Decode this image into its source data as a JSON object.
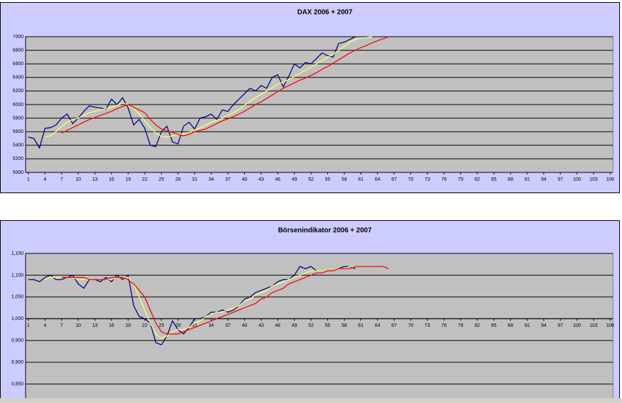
{
  "chart_data": [
    {
      "type": "line",
      "title": "DAX 2006 + 2007",
      "x": [
        1,
        2,
        3,
        4,
        5,
        6,
        7,
        8,
        9,
        10,
        11,
        12,
        13,
        14,
        15,
        16,
        17,
        18,
        19,
        20,
        21,
        22,
        23,
        24,
        25,
        26,
        27,
        28,
        29,
        30,
        31,
        32,
        33,
        34,
        35,
        36,
        37,
        38,
        39,
        40,
        41,
        42,
        43,
        44,
        45,
        46,
        47,
        48,
        49,
        50,
        51,
        52,
        53,
        54,
        55,
        56,
        57,
        58,
        59,
        60,
        61,
        62,
        63,
        64,
        65,
        66
      ],
      "series": [
        {
          "color": "#000080",
          "values": [
            5520,
            5500,
            5360,
            5650,
            5660,
            5700,
            5800,
            5860,
            5720,
            5800,
            5900,
            5980,
            5960,
            5950,
            5930,
            6080,
            6000,
            6100,
            5950,
            5700,
            5780,
            5650,
            5400,
            5380,
            5600,
            5680,
            5450,
            5420,
            5680,
            5740,
            5640,
            5800,
            5820,
            5860,
            5780,
            5920,
            5900,
            6000,
            6080,
            6160,
            6240,
            6200,
            6280,
            6240,
            6400,
            6440,
            6260,
            6420,
            6600,
            6540,
            6620,
            6600,
            6680,
            6760,
            6720,
            6700,
            6900,
            6920,
            6960,
            7000,
            null,
            null,
            null,
            null,
            null,
            null
          ]
        },
        {
          "color": "#ffff66",
          "values": [
            null,
            null,
            null,
            5520,
            5540,
            5600,
            5680,
            5740,
            5780,
            5800,
            5840,
            5880,
            5900,
            5920,
            5940,
            5960,
            5990,
            6020,
            6000,
            5940,
            5860,
            5760,
            5660,
            5580,
            5530,
            5520,
            5540,
            5560,
            5570,
            5590,
            5620,
            5660,
            5700,
            5740,
            5770,
            5800,
            5840,
            5880,
            5930,
            5990,
            6050,
            6100,
            6150,
            6200,
            6250,
            6300,
            6330,
            6370,
            6410,
            6460,
            6510,
            6550,
            6600,
            6650,
            6700,
            6740,
            6800,
            6860,
            6920,
            6960,
            6980,
            6990,
            7000,
            null,
            null,
            null
          ]
        },
        {
          "color": "#ff0000",
          "values": [
            null,
            null,
            null,
            null,
            null,
            null,
            5580,
            5620,
            5660,
            5700,
            5740,
            5780,
            5810,
            5840,
            5870,
            5900,
            5940,
            5970,
            6000,
            5960,
            5920,
            5880,
            5780,
            5700,
            5640,
            5610,
            5590,
            5560,
            5540,
            5560,
            5600,
            5620,
            5640,
            5680,
            5720,
            5760,
            5790,
            5820,
            5860,
            5900,
            5950,
            6000,
            6040,
            6090,
            6140,
            6190,
            6240,
            6280,
            6320,
            6360,
            6390,
            6430,
            6470,
            6520,
            6560,
            6610,
            6660,
            6710,
            6760,
            6800,
            6840,
            6870,
            6910,
            6940,
            6970,
            7000
          ]
        }
      ],
      "xlim": [
        0.5,
        106.5
      ],
      "xticks": [
        1,
        4,
        7,
        10,
        13,
        16,
        19,
        22,
        25,
        28,
        31,
        34,
        37,
        40,
        43,
        46,
        49,
        52,
        55,
        58,
        61,
        64,
        67,
        70,
        73,
        76,
        79,
        82,
        85,
        88,
        91,
        94,
        97,
        100,
        103,
        106
      ],
      "ylim": [
        5000,
        7000
      ],
      "yticks": [
        5000,
        5200,
        5400,
        5600,
        5800,
        6000,
        6200,
        6400,
        6600,
        6800,
        7000
      ],
      "xaxis_crosses": 5000,
      "grid": true
    },
    {
      "type": "line",
      "title": "Börsenindikator 2006 + 2007",
      "x": [
        1,
        2,
        3,
        4,
        5,
        6,
        7,
        8,
        9,
        10,
        11,
        12,
        13,
        14,
        15,
        16,
        17,
        18,
        19,
        20,
        21,
        22,
        23,
        24,
        25,
        26,
        27,
        28,
        29,
        30,
        31,
        32,
        33,
        34,
        35,
        36,
        37,
        38,
        39,
        40,
        41,
        42,
        43,
        44,
        45,
        46,
        47,
        48,
        49,
        50,
        51,
        52,
        53,
        54,
        55,
        56,
        57,
        58,
        59,
        60,
        61,
        62,
        63,
        64,
        65,
        66
      ],
      "series": [
        {
          "color": "#000080",
          "values": [
            1.09,
            1.09,
            1.085,
            1.095,
            1.1,
            1.09,
            1.09,
            1.095,
            1.1,
            1.08,
            1.07,
            1.09,
            1.09,
            1.085,
            1.095,
            1.085,
            1.1,
            1.09,
            1.1,
            1.03,
            1.005,
            1.0,
            0.99,
            0.945,
            0.94,
            0.96,
            0.995,
            0.975,
            0.965,
            0.98,
            1.0,
            1.0,
            1.005,
            1.015,
            1.015,
            1.02,
            1.015,
            1.02,
            1.03,
            1.045,
            1.05,
            1.06,
            1.065,
            1.07,
            1.075,
            1.085,
            1.09,
            1.09,
            1.1,
            1.12,
            1.115,
            1.12,
            1.11,
            1.11,
            1.115,
            1.115,
            1.115,
            1.12,
            1.12,
            1.115,
            null,
            null,
            null,
            null,
            null,
            null
          ]
        },
        {
          "color": "#ffff66",
          "values": [
            null,
            null,
            null,
            1.09,
            1.095,
            1.095,
            1.095,
            1.095,
            1.095,
            1.09,
            1.09,
            1.09,
            1.09,
            1.09,
            1.09,
            1.09,
            1.095,
            1.095,
            1.095,
            1.08,
            1.05,
            1.02,
            0.99,
            0.965,
            0.955,
            0.96,
            0.97,
            0.975,
            0.975,
            0.98,
            0.99,
            0.995,
            1.005,
            1.01,
            1.015,
            1.015,
            1.02,
            1.025,
            1.03,
            1.04,
            1.045,
            1.055,
            1.06,
            1.065,
            1.075,
            1.08,
            1.085,
            1.09,
            1.095,
            1.1,
            1.105,
            1.11,
            1.11,
            1.11,
            1.115,
            1.115,
            1.115,
            1.115,
            1.12,
            1.12,
            1.12,
            1.12,
            1.12,
            null,
            null,
            null
          ]
        },
        {
          "color": "#ff0000",
          "values": [
            null,
            null,
            null,
            null,
            null,
            null,
            1.095,
            1.095,
            1.095,
            1.095,
            1.095,
            1.09,
            1.09,
            1.09,
            1.09,
            1.095,
            1.095,
            1.095,
            1.09,
            1.08,
            1.065,
            1.05,
            1.02,
            0.99,
            0.97,
            0.965,
            0.965,
            0.965,
            0.97,
            0.975,
            0.98,
            0.985,
            0.99,
            0.995,
            1.0,
            1.005,
            1.01,
            1.015,
            1.02,
            1.025,
            1.03,
            1.035,
            1.045,
            1.05,
            1.06,
            1.065,
            1.07,
            1.08,
            1.085,
            1.09,
            1.095,
            1.1,
            1.105,
            1.105,
            1.11,
            1.11,
            1.115,
            1.115,
            1.115,
            1.12,
            1.12,
            1.12,
            1.12,
            1.12,
            1.12,
            1.115
          ]
        }
      ],
      "xlim": [
        0.5,
        106.5
      ],
      "xticks": [
        1,
        4,
        7,
        10,
        13,
        16,
        19,
        22,
        25,
        28,
        31,
        34,
        37,
        40,
        43,
        46,
        49,
        52,
        55,
        58,
        61,
        64,
        67,
        70,
        73,
        76,
        79,
        82,
        85,
        88,
        91,
        94,
        97,
        100,
        103,
        106
      ],
      "ylim": [
        0.8,
        1.15
      ],
      "yticks": [
        {
          "value": 0.85,
          "label": "0,850"
        },
        {
          "value": 0.9,
          "label": "0,900"
        },
        {
          "value": 0.95,
          "label": "0,950"
        },
        {
          "value": 1.0,
          "label": "1,000"
        },
        {
          "value": 1.05,
          "label": "1,050"
        },
        {
          "value": 1.1,
          "label": "1,100"
        },
        {
          "value": 1.15,
          "label": "1,150"
        }
      ],
      "xaxis_crosses": 1.0,
      "grid": true
    }
  ]
}
